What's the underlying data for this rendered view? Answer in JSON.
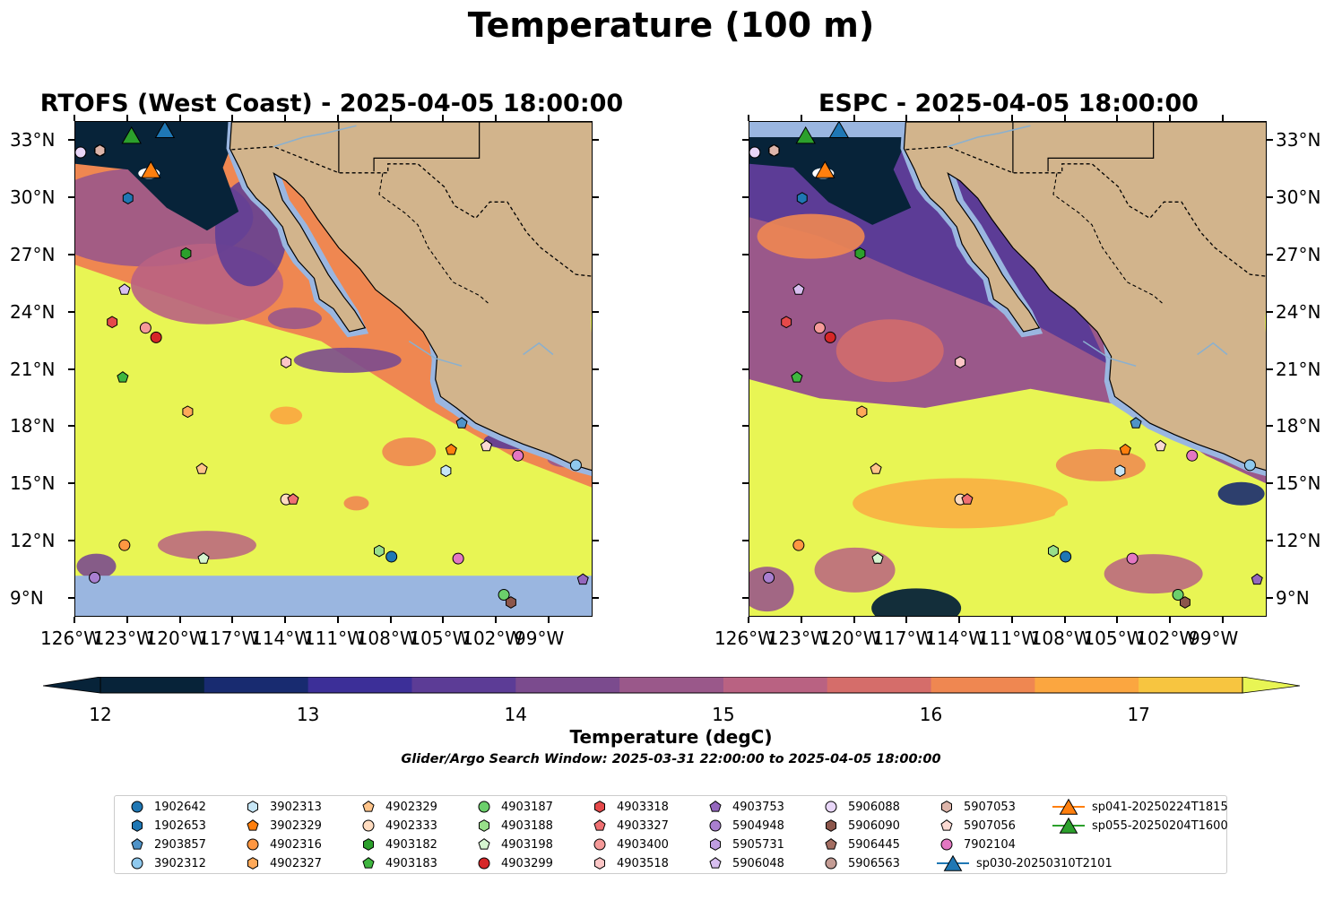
{
  "figure": {
    "title": "Temperature (100 m)",
    "search_window": "Glider/Argo Search Window: 2025-03-31 22:00:00 to 2025-04-05 18:00:00"
  },
  "panels": [
    {
      "id": "left",
      "title": "RTOFS (West Coast) - 2025-04-05 18:00:00"
    },
    {
      "id": "right",
      "title": "ESPC - 2025-04-05 18:00:00"
    }
  ],
  "map_extent": {
    "lon": [
      -126,
      -96.5
    ],
    "lat": [
      8,
      34
    ]
  },
  "lat_ticks": [
    "33°N",
    "30°N",
    "27°N",
    "24°N",
    "21°N",
    "18°N",
    "15°N",
    "12°N",
    "9°N"
  ],
  "lat_values": [
    33,
    30,
    27,
    24,
    21,
    18,
    15,
    12,
    9
  ],
  "lon_ticks": [
    "126°W",
    "123°W",
    "120°W",
    "117°W",
    "114°W",
    "111°W",
    "108°W",
    "105°W",
    "102°W",
    "99°W"
  ],
  "lon_values": [
    -126,
    -123,
    -120,
    -117,
    -114,
    -111,
    -108,
    -105,
    -102,
    -99
  ],
  "colorbar": {
    "label": "Temperature (degC)",
    "min": 12,
    "max": 17.5,
    "tick_labels": [
      "12",
      "13",
      "14",
      "15",
      "16",
      "17"
    ],
    "tick_values": [
      12,
      13,
      14,
      15,
      16,
      17
    ],
    "colors": [
      "#072339",
      "#182b70",
      "#3c2f98",
      "#5c3c96",
      "#7b4b8e",
      "#9a588a",
      "#b96282",
      "#d56d6a",
      "#ef8751",
      "#fba640",
      "#f7c540"
    ],
    "under_color": "#072339",
    "over_color": "#e8f554"
  },
  "colors": {
    "land": "#d2b48c",
    "mask": "#9ab6e0",
    "warm": "#e8f554"
  },
  "legend": [
    {
      "label": "1902642",
      "marker": "circle",
      "color": "#1f77b4"
    },
    {
      "label": "1902653",
      "marker": "hexagon",
      "color": "#1f77b4"
    },
    {
      "label": "2903857",
      "marker": "pentagon",
      "color": "#4f93c8"
    },
    {
      "label": "3902312",
      "marker": "circle",
      "color": "#8fc9ee"
    },
    {
      "label": "3902313",
      "marker": "hexagon",
      "color": "#c6e6f6"
    },
    {
      "label": "3902329",
      "marker": "pentagon",
      "color": "#ff7f0e"
    },
    {
      "label": "4902316",
      "marker": "circle",
      "color": "#ff9742"
    },
    {
      "label": "4902327",
      "marker": "hexagon",
      "color": "#ffa959"
    },
    {
      "label": "4902329",
      "marker": "pentagon",
      "color": "#ffc48a"
    },
    {
      "label": "4902333",
      "marker": "circle",
      "color": "#ffdcc0"
    },
    {
      "label": "4903182",
      "marker": "hexagon",
      "color": "#2ca02c"
    },
    {
      "label": "4903183",
      "marker": "pentagon",
      "color": "#3fb63f"
    },
    {
      "label": "4903187",
      "marker": "circle",
      "color": "#6bcf6b"
    },
    {
      "label": "4903188",
      "marker": "hexagon",
      "color": "#98df8a"
    },
    {
      "label": "4903198",
      "marker": "pentagon",
      "color": "#d6f5d0"
    },
    {
      "label": "4903299",
      "marker": "circle",
      "color": "#d62728"
    },
    {
      "label": "4903318",
      "marker": "hexagon",
      "color": "#e5494a"
    },
    {
      "label": "4903327",
      "marker": "pentagon",
      "color": "#f07072"
    },
    {
      "label": "4903400",
      "marker": "circle",
      "color": "#f59a99"
    },
    {
      "label": "4903518",
      "marker": "hexagon",
      "color": "#fcc6c6"
    },
    {
      "label": "4903753",
      "marker": "pentagon",
      "color": "#9467bd"
    },
    {
      "label": "5904948",
      "marker": "circle",
      "color": "#a97fd0"
    },
    {
      "label": "5905731",
      "marker": "hexagon",
      "color": "#bf9ee0"
    },
    {
      "label": "5906048",
      "marker": "pentagon",
      "color": "#d8bff0"
    },
    {
      "label": "5906088",
      "marker": "circle",
      "color": "#e8d6f8"
    },
    {
      "label": "5906090",
      "marker": "hexagon",
      "color": "#8c564b"
    },
    {
      "label": "5906445",
      "marker": "pentagon",
      "color": "#a46e62"
    },
    {
      "label": "5906563",
      "marker": "circle",
      "color": "#c49c94"
    },
    {
      "label": "5907053",
      "marker": "hexagon",
      "color": "#ddb5aa"
    },
    {
      "label": "5907056",
      "marker": "pentagon",
      "color": "#fbd9d2"
    },
    {
      "label": "7902104",
      "marker": "circle",
      "color": "#e377c2"
    },
    {
      "label": "sp030-20250310T2101",
      "marker": "triangle",
      "color": "#1f77b4"
    },
    {
      "label": "sp041-20250224T1815",
      "marker": "triangle",
      "color": "#ff7f0e"
    },
    {
      "label": "sp055-20250204T1600",
      "marker": "triangle",
      "color": "#2ca02c"
    }
  ],
  "floats": [
    {
      "id": "1902642",
      "lon": -108.0,
      "lat": 11.2
    },
    {
      "id": "1902653",
      "lon": -123.0,
      "lat": 30.0
    },
    {
      "id": "2903857",
      "lon": -104.0,
      "lat": 18.2
    },
    {
      "id": "3902312",
      "lon": -97.5,
      "lat": 16.0
    },
    {
      "id": "3902313",
      "lon": -104.9,
      "lat": 15.7
    },
    {
      "id": "3902329",
      "lon": -104.6,
      "lat": 16.8
    },
    {
      "id": "4902316",
      "lon": -123.2,
      "lat": 11.8
    },
    {
      "id": "4902327",
      "lon": -119.6,
      "lat": 18.8
    },
    {
      "id": "4902329",
      "lon": -118.8,
      "lat": 15.8
    },
    {
      "id": "4902333",
      "lon": -114.0,
      "lat": 14.2
    },
    {
      "id": "4903182",
      "lon": -119.7,
      "lat": 27.1
    },
    {
      "id": "4903183",
      "lon": -123.3,
      "lat": 20.6
    },
    {
      "id": "4903187",
      "lon": -101.6,
      "lat": 9.2
    },
    {
      "id": "4903188",
      "lon": -108.7,
      "lat": 11.5
    },
    {
      "id": "4903198",
      "lon": -118.7,
      "lat": 11.1
    },
    {
      "id": "4903299",
      "lon": -121.4,
      "lat": 22.7
    },
    {
      "id": "4903318",
      "lon": -123.9,
      "lat": 23.5
    },
    {
      "id": "4903327",
      "lon": -113.6,
      "lat": 14.2
    },
    {
      "id": "4903400",
      "lon": -122.0,
      "lat": 23.2
    },
    {
      "id": "4903518",
      "lon": -114.0,
      "lat": 21.4
    },
    {
      "id": "4903753",
      "lon": -97.1,
      "lat": 10.0
    },
    {
      "id": "5904948",
      "lon": -124.9,
      "lat": 10.1
    },
    {
      "id": "5905731",
      "lon": -125.7,
      "lat": 32.4
    },
    {
      "id": "5906048",
      "lon": -123.2,
      "lat": 25.2
    },
    {
      "id": "5906088",
      "lon": -125.7,
      "lat": 32.4
    },
    {
      "id": "5906090",
      "lon": -101.2,
      "lat": 8.8
    },
    {
      "id": "5906445",
      "lon": -124.6,
      "lat": 32.5
    },
    {
      "id": "5906563",
      "lon": -124.6,
      "lat": 32.5
    },
    {
      "id": "5907053",
      "lon": -124.6,
      "lat": 32.5
    },
    {
      "id": "5907056",
      "lon": -102.6,
      "lat": 17.0
    },
    {
      "id": "7902104",
      "lon": -104.2,
      "lat": 11.1
    },
    {
      "id": "7902104",
      "lon": -100.8,
      "lat": 16.5
    }
  ],
  "gliders": [
    {
      "id": "sp030-20250310T2101",
      "lon": -120.9,
      "lat": 33.6
    },
    {
      "id": "sp041-20250224T1815",
      "lon": -121.7,
      "lat": 31.5
    },
    {
      "id": "sp055-20250204T1600",
      "lon": -122.8,
      "lat": 33.3
    }
  ]
}
